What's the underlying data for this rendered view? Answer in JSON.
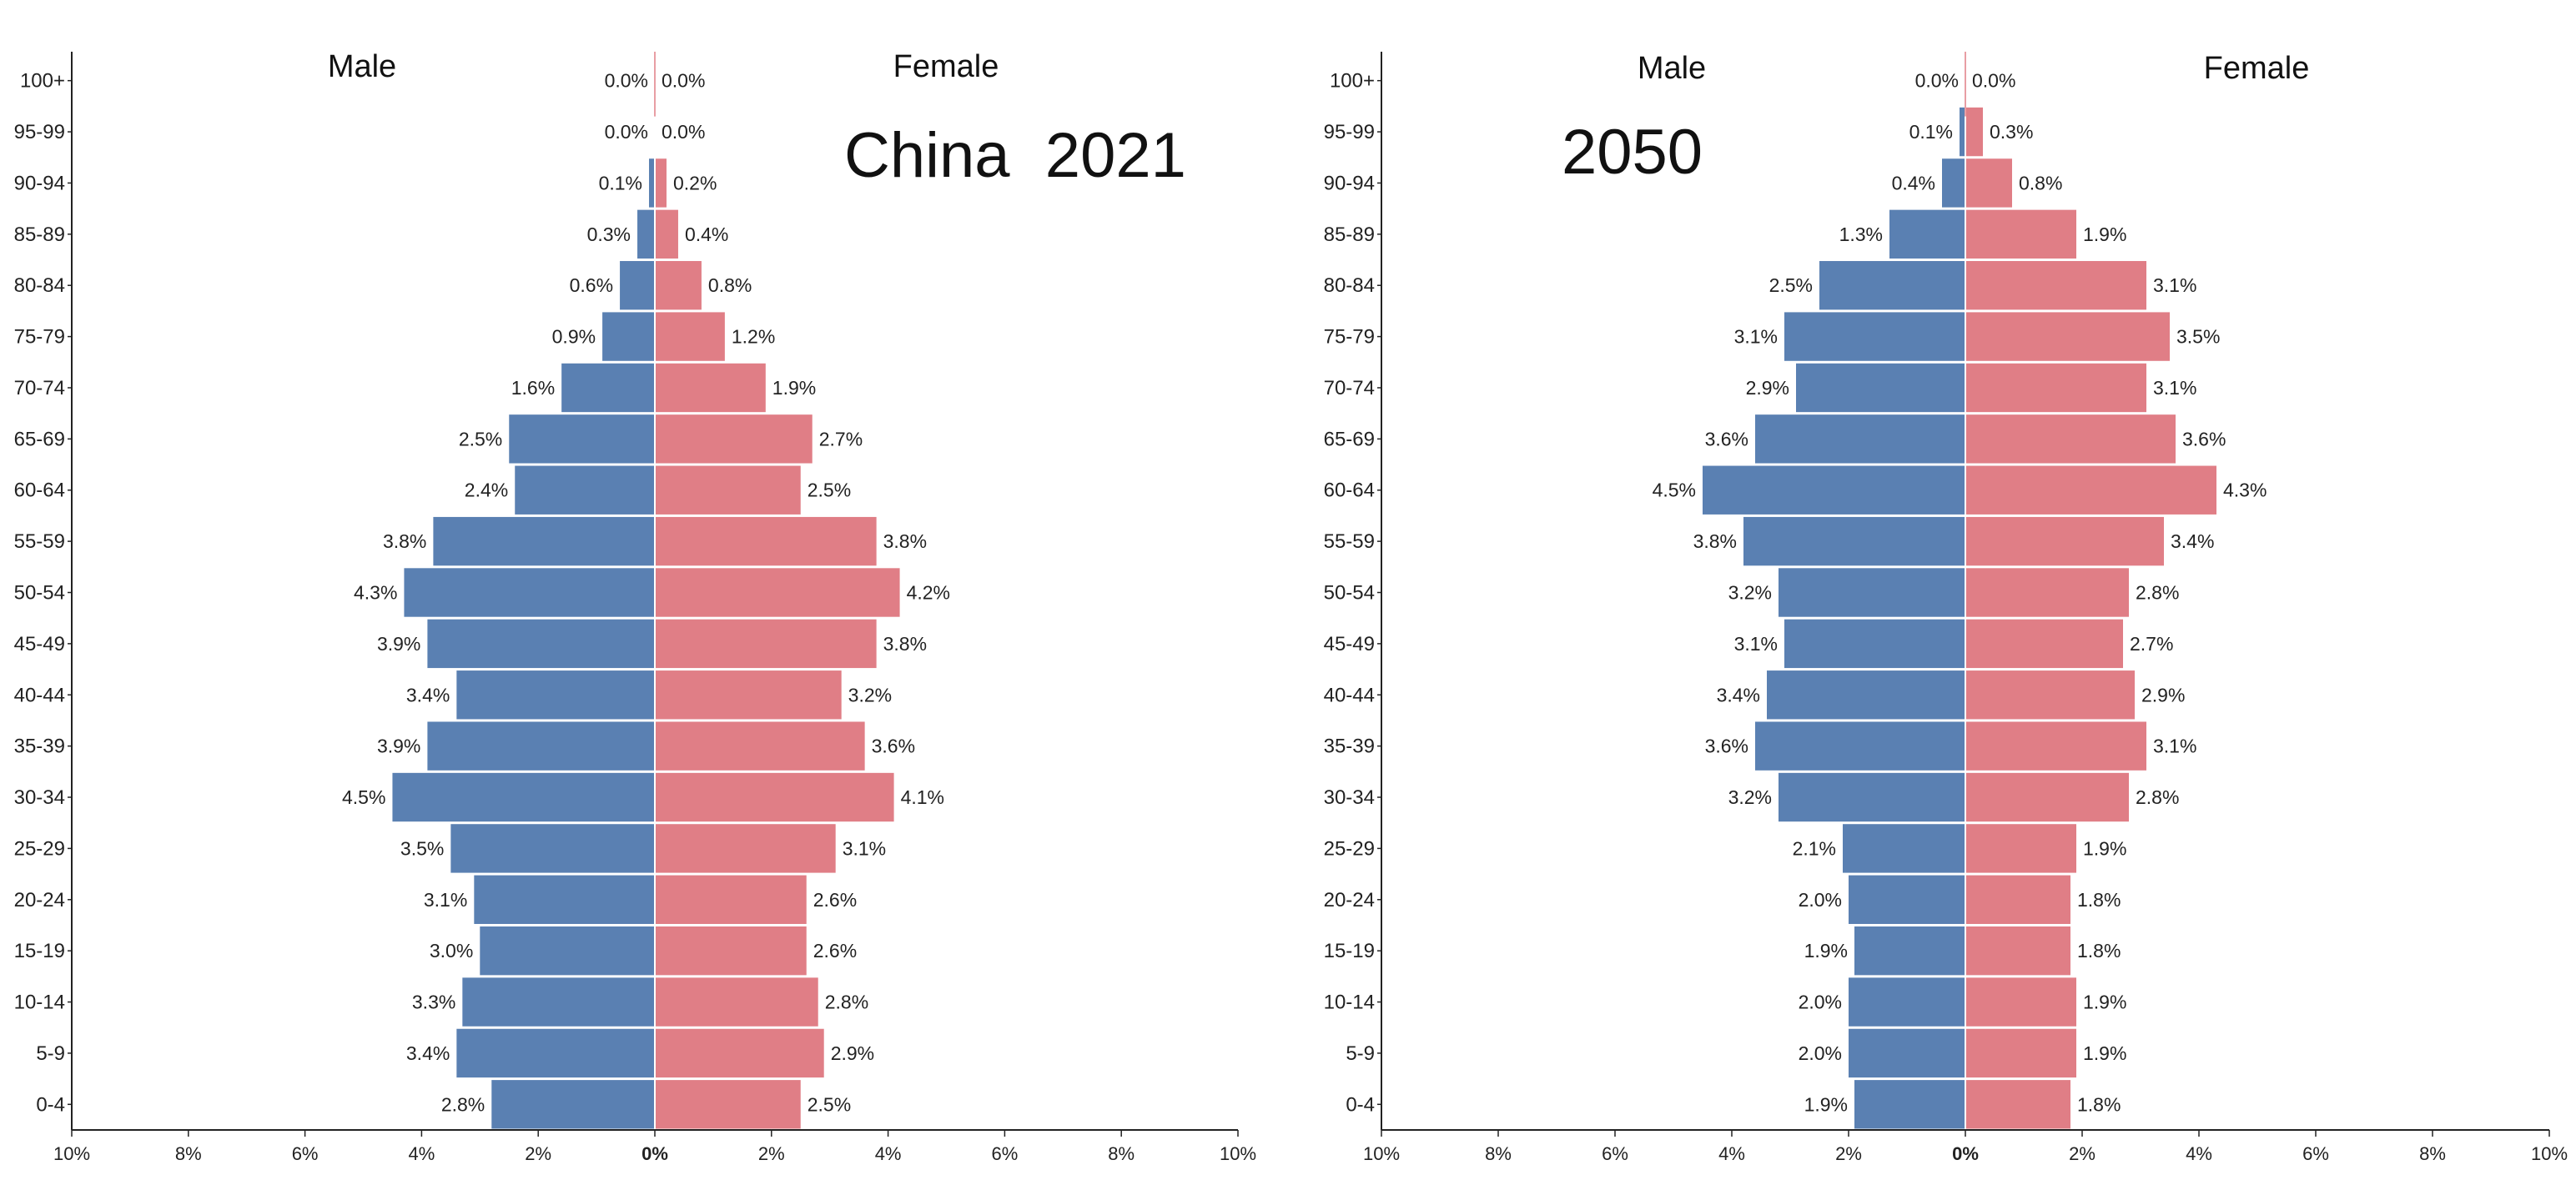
{
  "chart_data": [
    {
      "type": "bar",
      "orientation": "horizontal-pyramid",
      "title": "China  2021",
      "left_header": "Male",
      "right_header": "Female",
      "categories": [
        "0-4",
        "5-9",
        "10-14",
        "15-19",
        "20-24",
        "25-29",
        "30-34",
        "35-39",
        "40-44",
        "45-49",
        "50-54",
        "55-59",
        "60-64",
        "65-69",
        "70-74",
        "75-79",
        "80-84",
        "85-89",
        "90-94",
        "95-99",
        "100+"
      ],
      "series": [
        {
          "name": "Male",
          "color": "#5a80b2",
          "values": [
            2.8,
            3.4,
            3.3,
            3.0,
            3.1,
            3.5,
            4.5,
            3.9,
            3.4,
            3.9,
            4.3,
            3.8,
            2.4,
            2.5,
            1.6,
            0.9,
            0.6,
            0.3,
            0.1,
            0.0,
            0.0
          ]
        },
        {
          "name": "Female",
          "color": "#e07e86",
          "values": [
            2.5,
            2.9,
            2.8,
            2.6,
            2.6,
            3.1,
            4.1,
            3.6,
            3.2,
            3.8,
            4.2,
            3.8,
            2.5,
            2.7,
            1.9,
            1.2,
            0.8,
            0.4,
            0.2,
            0.0,
            0.0
          ]
        }
      ],
      "data_label_suffix": "%",
      "x_ticks": [
        "10%",
        "8%",
        "6%",
        "4%",
        "2%",
        "0%",
        "2%",
        "4%",
        "6%",
        "8%",
        "10%"
      ],
      "xlim": [
        -10,
        10
      ]
    },
    {
      "type": "bar",
      "orientation": "horizontal-pyramid",
      "title": "2050",
      "left_header": "Male",
      "right_header": "Female",
      "categories": [
        "0-4",
        "5-9",
        "10-14",
        "15-19",
        "20-24",
        "25-29",
        "30-34",
        "35-39",
        "40-44",
        "45-49",
        "50-54",
        "55-59",
        "60-64",
        "65-69",
        "70-74",
        "75-79",
        "80-84",
        "85-89",
        "90-94",
        "95-99",
        "100+"
      ],
      "series": [
        {
          "name": "Male",
          "color": "#5a80b2",
          "values": [
            1.9,
            2.0,
            2.0,
            1.9,
            2.0,
            2.1,
            3.2,
            3.6,
            3.4,
            3.1,
            3.2,
            3.8,
            4.5,
            3.6,
            2.9,
            3.1,
            2.5,
            1.3,
            0.4,
            0.1,
            0.0
          ]
        },
        {
          "name": "Female",
          "color": "#e07e86",
          "values": [
            1.8,
            1.9,
            1.9,
            1.8,
            1.8,
            1.9,
            2.8,
            3.1,
            2.9,
            2.7,
            2.8,
            3.4,
            4.3,
            3.6,
            3.1,
            3.5,
            3.1,
            1.9,
            0.8,
            0.3,
            0.0
          ]
        }
      ],
      "data_label_suffix": "%",
      "x_ticks": [
        "10%",
        "8%",
        "6%",
        "4%",
        "2%",
        "0%",
        "2%",
        "4%",
        "6%",
        "8%",
        "10%"
      ],
      "xlim": [
        -10,
        10
      ]
    }
  ]
}
